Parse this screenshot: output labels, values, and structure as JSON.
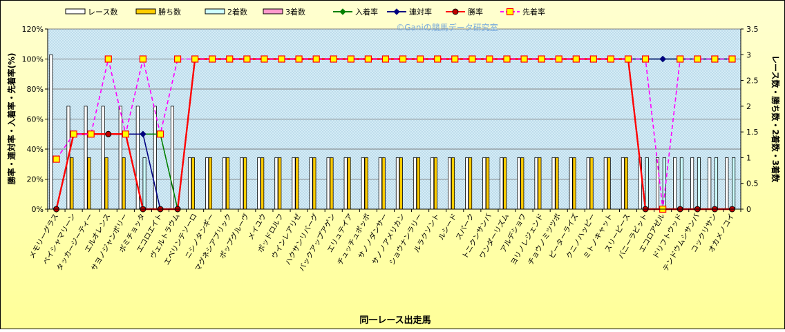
{
  "chart_data": {
    "type": "bar",
    "watermark": "©Ganiの競馬データ研究室",
    "xlabel": "同一レース出走馬",
    "ylabel_left": "勝率・連対率・入着率・先着率(%)",
    "ylabel_right": "レース数・勝ち数・2着数・3着数",
    "y_left": {
      "min": 0,
      "max": 120,
      "step": 20,
      "ticks": [
        "0%",
        "20%",
        "40%",
        "60%",
        "80%",
        "100%",
        "120%"
      ]
    },
    "y_right": {
      "min": 0,
      "max": 3.5,
      "step": 0.5,
      "ticks": [
        "0",
        "0.5",
        "1",
        "1.5",
        "2",
        "2.5",
        "3",
        "3.5"
      ]
    },
    "grid": true,
    "legend_position": "top",
    "legend": [
      "レース数",
      "勝ち数",
      "2着数",
      "3着数",
      "入着率",
      "連対率",
      "勝率",
      "先着率"
    ],
    "categories": [
      "メモリーグラス",
      "ベイシャマリーン",
      "タッカージーティー",
      "エルオレンス",
      "サヨノジャンボリー",
      "ボミチョッタ",
      "エコロエイト",
      "ヴェルトラウム",
      "エベリンテソーロ",
      "ニシノタンギー",
      "マグネシアブリック",
      "ポップグルーヴ",
      "メイユウ",
      "ポッドロルフ",
      "ウインレアリゼ",
      "ハクサンリバーグ",
      "バックアップアゲン",
      "エリュテイア",
      "チュッチュボッボ",
      "サノノダンサー",
      "サノノアメリカン",
      "ショウナンラリー",
      "ルラクソント",
      "ルシード",
      "スパーク",
      "トニクンサンバ",
      "ワンダーリズム",
      "アルデショワ",
      "ヨリノレジェンド",
      "チョウノミツツボ",
      "ピーターライズ",
      "クニノハッピー",
      "ミトノキャット",
      "スリーピース",
      "バニーラビット",
      "エコロアゼル",
      "ドリフトウッド",
      "テンドウムシサンバ",
      "コックリサン",
      "オカメノコイ"
    ],
    "series": [
      {
        "name": "レース数",
        "axis": "right",
        "kind": "bar",
        "color": "#ffffff",
        "values": [
          3,
          2,
          2,
          2,
          2,
          2,
          2,
          2,
          1,
          1,
          1,
          1,
          1,
          1,
          1,
          1,
          1,
          1,
          1,
          1,
          1,
          1,
          1,
          1,
          1,
          1,
          1,
          1,
          1,
          1,
          1,
          1,
          1,
          1,
          1,
          1,
          1,
          1,
          1,
          1
        ]
      },
      {
        "name": "勝ち数",
        "axis": "right",
        "kind": "bar",
        "color": "#ffcc00",
        "values": [
          0,
          1,
          1,
          1,
          1,
          0,
          0,
          0,
          1,
          1,
          1,
          1,
          1,
          1,
          1,
          1,
          1,
          1,
          1,
          1,
          1,
          1,
          1,
          1,
          1,
          1,
          1,
          1,
          1,
          1,
          1,
          1,
          1,
          1,
          0,
          0,
          0,
          0,
          0,
          0
        ]
      },
      {
        "name": "2着数",
        "axis": "right",
        "kind": "bar",
        "color": "#ccffff",
        "values": [
          0,
          0,
          0,
          0,
          0,
          1,
          0,
          0,
          0,
          0,
          0,
          0,
          0,
          0,
          0,
          0,
          0,
          0,
          0,
          0,
          0,
          0,
          0,
          0,
          0,
          0,
          0,
          0,
          0,
          0,
          0,
          0,
          0,
          0,
          1,
          1,
          1,
          1,
          1,
          1
        ]
      },
      {
        "name": "3着数",
        "axis": "right",
        "kind": "bar",
        "color": "#ff99cc",
        "values": [
          0,
          0,
          0,
          0,
          0,
          0,
          0,
          0,
          0,
          0,
          0,
          0,
          0,
          0,
          0,
          0,
          0,
          0,
          0,
          0,
          0,
          0,
          0,
          0,
          0,
          0,
          0,
          0,
          0,
          0,
          0,
          0,
          0,
          0,
          0,
          0,
          0,
          0,
          0,
          0
        ]
      },
      {
        "name": "入着率",
        "axis": "left",
        "kind": "line",
        "color": "#008000",
        "marker": "diamond",
        "values": [
          0,
          50,
          50,
          50,
          50,
          50,
          50,
          0,
          100,
          100,
          100,
          100,
          100,
          100,
          100,
          100,
          100,
          100,
          100,
          100,
          100,
          100,
          100,
          100,
          100,
          100,
          100,
          100,
          100,
          100,
          100,
          100,
          100,
          100,
          100,
          100,
          100,
          100,
          100,
          100
        ]
      },
      {
        "name": "連対率",
        "axis": "left",
        "kind": "line",
        "color": "#000080",
        "marker": "diamond",
        "values": [
          0,
          50,
          50,
          50,
          50,
          50,
          0,
          0,
          100,
          100,
          100,
          100,
          100,
          100,
          100,
          100,
          100,
          100,
          100,
          100,
          100,
          100,
          100,
          100,
          100,
          100,
          100,
          100,
          100,
          100,
          100,
          100,
          100,
          100,
          100,
          100,
          100,
          100,
          100,
          100
        ]
      },
      {
        "name": "勝率",
        "axis": "left",
        "kind": "line",
        "color": "#ff0000",
        "marker": "circle",
        "values": [
          0,
          50,
          50,
          50,
          50,
          0,
          0,
          0,
          100,
          100,
          100,
          100,
          100,
          100,
          100,
          100,
          100,
          100,
          100,
          100,
          100,
          100,
          100,
          100,
          100,
          100,
          100,
          100,
          100,
          100,
          100,
          100,
          100,
          100,
          0,
          0,
          0,
          0,
          0,
          0
        ]
      },
      {
        "name": "先着率",
        "axis": "left",
        "kind": "line",
        "color": "#ff00ff",
        "marker": "square",
        "dashed": true,
        "values": [
          33.3,
          50,
          50,
          100,
          50,
          100,
          50,
          100,
          100,
          100,
          100,
          100,
          100,
          100,
          100,
          100,
          100,
          100,
          100,
          100,
          100,
          100,
          100,
          100,
          100,
          100,
          100,
          100,
          100,
          100,
          100,
          100,
          100,
          100,
          100,
          0,
          100,
          100,
          100,
          100
        ]
      }
    ]
  }
}
